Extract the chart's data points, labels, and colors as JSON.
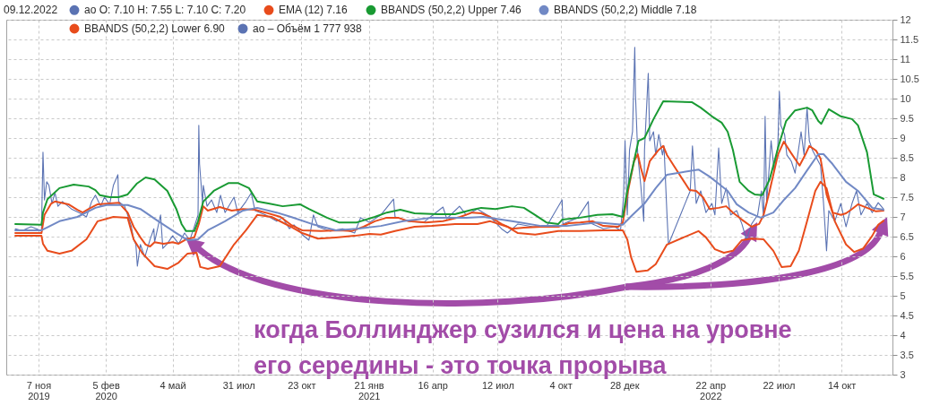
{
  "chart_data": {
    "type": "line",
    "legend": "top left",
    "grid": true,
    "xlim": [
      "2019-09-25",
      "2022-12-21"
    ],
    "xticks": [
      {
        "value": "2019-11-07",
        "label": "7 ноя\n2019"
      },
      {
        "value": "2020-02-05",
        "label": "5 фев\n2020"
      },
      {
        "value": "2020-05-04",
        "label": "4 май"
      },
      {
        "value": "2020-07-31",
        "label": "31 июл"
      },
      {
        "value": "2020-10-23",
        "label": "23 окт"
      },
      {
        "value": "2021-01-21",
        "label": "21 янв\n2021"
      },
      {
        "value": "2021-04-16",
        "label": "16 апр"
      },
      {
        "value": "2021-07-12",
        "label": "12 июл"
      },
      {
        "value": "2021-10-04",
        "label": "4 окт"
      },
      {
        "value": "2021-12-28",
        "label": "28 дек"
      },
      {
        "value": "2022-04-22",
        "label": "22 апр\n2022"
      },
      {
        "value": "2022-07-22",
        "label": "22 июл"
      },
      {
        "value": "2022-10-14",
        "label": "14 окт"
      }
    ],
    "ylim": [
      3,
      12
    ],
    "yticks": [
      3,
      3.5,
      4,
      4.5,
      5,
      5.5,
      6,
      6.5,
      7,
      7.5,
      8,
      8.5,
      9,
      9.5,
      10,
      10.5,
      11,
      11.5,
      12
    ],
    "annotations": [
      "09.12.2022",
      "ао – Объём 1 777 938",
      "когда Боллинджер сузился и цена на уровне\nего середины - это точка прорыва"
    ],
    "series": [
      {
        "name": "ао O: 7.10 H: 7.55 L: 7.10 C: 7.20",
        "color": "#5b73b3",
        "x": [
          "2019-10-07",
          "2019-10-16",
          "2019-10-28",
          "2019-11-11",
          "2019-11-13",
          "2019-11-15",
          "2019-11-18",
          "2019-11-21",
          "2019-11-25",
          "2019-11-29",
          "2019-12-03",
          "2019-12-09",
          "2019-12-21",
          "2020-01-02",
          "2020-01-10",
          "2020-01-17",
          "2020-01-22",
          "2020-01-29",
          "2020-02-03",
          "2020-02-10",
          "2020-02-15",
          "2020-02-21",
          "2020-02-22",
          "2020-03-01",
          "2020-03-05",
          "2020-03-10",
          "2020-03-13",
          "2020-03-16",
          "2020-03-18",
          "2020-03-22",
          "2020-03-28",
          "2020-04-04",
          "2020-04-09",
          "2020-04-10",
          "2020-04-18",
          "2020-04-21",
          "2020-04-27",
          "2020-05-04",
          "2020-05-12",
          "2020-05-20",
          "2020-05-27",
          "2020-06-02",
          "2020-06-07",
          "2020-06-08",
          "2020-06-09",
          "2020-06-13",
          "2020-06-14",
          "2020-06-19",
          "2020-06-25",
          "2020-07-02",
          "2020-07-07",
          "2020-07-13",
          "2020-07-25",
          "2020-07-30",
          "2020-08-10",
          "2020-08-17",
          "2020-08-22",
          "2020-09-05",
          "2020-09-20",
          "2020-09-28",
          "2020-10-07",
          "2020-10-13",
          "2020-10-21",
          "2020-10-24",
          "2020-11-02",
          "2020-11-08",
          "2020-11-14",
          "2020-11-30",
          "2020-12-17",
          "2021-01-02",
          "2021-01-10",
          "2021-01-22",
          "2021-02-06",
          "2021-02-23",
          "2021-02-25",
          "2021-03-15",
          "2021-04-04",
          "2021-04-30",
          "2021-05-05",
          "2021-05-22",
          "2021-05-31",
          "2021-06-15",
          "2021-07-02",
          "2021-07-17",
          "2021-07-25",
          "2021-08-08",
          "2021-08-28",
          "2021-09-15",
          "2021-10-06",
          "2021-10-07",
          "2021-10-27",
          "2021-11-10",
          "2021-11-11",
          "2021-11-30",
          "2021-12-15",
          "2021-12-23",
          "2021-12-27",
          "2021-12-29",
          "2022-01-01",
          "2022-01-04",
          "2022-01-08",
          "2022-01-11",
          "2022-01-12",
          "2022-01-15",
          "2022-01-19",
          "2022-01-23",
          "2022-01-24",
          "2022-01-29",
          "2022-01-31",
          "2022-02-05",
          "2022-02-08",
          "2022-02-12",
          "2022-02-17",
          "2022-02-19",
          "2022-02-23",
          "2022-02-25",
          "2022-03-26",
          "2022-03-29",
          "2022-04-03",
          "2022-04-09",
          "2022-04-16",
          "2022-04-24",
          "2022-04-28",
          "2022-05-03",
          "2022-05-07",
          "2022-05-13",
          "2022-05-19",
          "2022-05-27",
          "2022-06-03",
          "2022-06-09",
          "2022-06-16",
          "2022-06-24",
          "2022-06-29",
          "2022-07-02",
          "2022-07-04",
          "2022-07-06",
          "2022-07-12",
          "2022-07-16",
          "2022-07-21",
          "2022-07-23",
          "2022-07-25",
          "2022-07-30",
          "2022-08-02",
          "2022-08-08",
          "2022-08-13",
          "2022-08-21",
          "2022-08-25",
          "2022-08-29",
          "2022-09-01",
          "2022-09-05",
          "2022-09-13",
          "2022-09-16",
          "2022-09-20",
          "2022-09-24",
          "2022-09-27",
          "2022-10-05",
          "2022-10-13",
          "2022-10-20",
          "2022-10-28",
          "2022-11-03",
          "2022-11-09",
          "2022-11-17",
          "2022-11-24",
          "2022-12-02",
          "2022-12-09"
        ],
        "values": [
          6.7,
          6.65,
          6.75,
          6.65,
          8.64,
          7.43,
          7.89,
          7.8,
          7.34,
          7.61,
          7.27,
          7.39,
          7.2,
          7.09,
          7.0,
          7.39,
          7.55,
          7.27,
          7.5,
          7.32,
          7.8,
          8.07,
          7.39,
          7.27,
          7.05,
          6.75,
          6.43,
          6.3,
          5.75,
          6.3,
          5.98,
          6.43,
          6.7,
          6.36,
          7.05,
          6.2,
          6.32,
          6.52,
          6.32,
          6.59,
          6.41,
          6.75,
          7.05,
          9.32,
          8.34,
          7.34,
          7.8,
          7.27,
          7.43,
          7.11,
          7.55,
          7.11,
          7.5,
          7.11,
          7.39,
          7.61,
          7.16,
          7.05,
          6.89,
          6.98,
          6.7,
          6.8,
          6.64,
          6.55,
          6.41,
          7.05,
          6.75,
          6.64,
          6.7,
          6.59,
          6.98,
          6.86,
          7.05,
          7.45,
          7.0,
          6.89,
          6.86,
          7.25,
          6.95,
          7.27,
          7.05,
          7.2,
          7.0,
          6.7,
          6.59,
          6.82,
          6.75,
          6.75,
          7.43,
          6.82,
          6.98,
          7.39,
          6.86,
          6.7,
          6.75,
          6.66,
          7.5,
          8.93,
          7.05,
          8.7,
          9.16,
          11.3,
          10.07,
          8.57,
          7.8,
          6.89,
          8.7,
          10.64,
          8.93,
          9.16,
          8.57,
          9.09,
          8.57,
          8.8,
          7.05,
          6.3,
          7.66,
          8.8,
          7.34,
          7.66,
          7.11,
          7.34,
          7.05,
          8.75,
          7.34,
          7.73,
          7.05,
          7.16,
          6.82,
          6.43,
          6.82,
          7.05,
          7.66,
          6.98,
          9.55,
          7.34,
          8.93,
          8.18,
          8.8,
          10.18,
          9.32,
          9.09,
          8.57,
          8.41,
          8.11,
          9.16,
          8.57,
          9.77,
          8.93,
          8.7,
          8.41,
          8.3,
          7.34,
          6.14,
          7.16,
          6.89,
          7.34,
          6.75,
          7.34,
          7.66,
          7.05,
          7.34,
          7.11,
          7.36,
          7.2
        ]
      },
      {
        "name": "EMA (12) 7.16",
        "color": "#e84c1c",
        "x": [
          "2019-10-07",
          "2019-11-11",
          "2019-11-15",
          "2019-11-24",
          "2019-11-29",
          "2019-12-17",
          "2019-12-29",
          "2020-01-05",
          "2020-01-13",
          "2020-01-25",
          "2020-02-10",
          "2020-02-22",
          "2020-03-05",
          "2020-03-13",
          "2020-03-22",
          "2020-03-29",
          "2020-04-04",
          "2020-04-10",
          "2020-04-22",
          "2020-05-04",
          "2020-05-12",
          "2020-05-22",
          "2020-06-02",
          "2020-06-08",
          "2020-06-14",
          "2020-06-20",
          "2020-07-06",
          "2020-07-22",
          "2020-08-06",
          "2020-08-22",
          "2020-09-05",
          "2020-09-25",
          "2020-10-09",
          "2020-10-24",
          "2020-11-18",
          "2020-12-12",
          "2020-12-29",
          "2021-01-14",
          "2021-01-29",
          "2021-02-14",
          "2021-03-01",
          "2021-03-15",
          "2021-04-07",
          "2021-04-30",
          "2021-05-23",
          "2021-06-08",
          "2021-06-20",
          "2021-07-02",
          "2021-07-17",
          "2021-07-31",
          "2021-08-16",
          "2021-09-08",
          "2021-10-01",
          "2021-10-15",
          "2021-10-30",
          "2021-11-16",
          "2021-11-30",
          "2021-12-20",
          "2021-12-26",
          "2022-01-02",
          "2022-01-10",
          "2022-01-15",
          "2022-01-19",
          "2022-01-24",
          "2022-01-31",
          "2022-02-11",
          "2022-02-18",
          "2022-02-23",
          "2022-03-25",
          "2022-04-03",
          "2022-04-12",
          "2022-04-21",
          "2022-05-03",
          "2022-05-13",
          "2022-05-22",
          "2022-06-03",
          "2022-06-16",
          "2022-06-26",
          "2022-07-02",
          "2022-07-10",
          "2022-07-21",
          "2022-07-29",
          "2022-08-07",
          "2022-08-19",
          "2022-08-27",
          "2022-09-01",
          "2022-09-10",
          "2022-09-16",
          "2022-09-24",
          "2022-10-02",
          "2022-10-13",
          "2022-10-20",
          "2022-10-28",
          "2022-11-05",
          "2022-11-17",
          "2022-11-29",
          "2022-12-09"
        ],
        "values": [
          6.59,
          6.59,
          7.05,
          7.34,
          7.39,
          7.32,
          7.18,
          7.11,
          7.2,
          7.32,
          7.34,
          7.36,
          7.11,
          6.75,
          6.48,
          6.3,
          6.25,
          6.36,
          6.32,
          6.36,
          6.32,
          6.43,
          6.48,
          6.82,
          7.27,
          7.16,
          7.25,
          7.16,
          7.2,
          7.18,
          7.11,
          7.0,
          6.8,
          6.66,
          6.64,
          6.66,
          6.64,
          6.75,
          6.89,
          6.98,
          6.98,
          6.89,
          6.86,
          6.89,
          7.0,
          7.11,
          7.09,
          7.0,
          6.82,
          6.7,
          6.73,
          6.75,
          6.75,
          6.84,
          6.86,
          6.89,
          6.77,
          6.75,
          6.86,
          7.66,
          8.41,
          8.59,
          8.25,
          7.91,
          8.41,
          8.68,
          8.8,
          8.57,
          7.68,
          7.66,
          7.5,
          7.2,
          7.23,
          7.27,
          7.11,
          6.93,
          6.75,
          6.82,
          7.05,
          7.66,
          8.57,
          8.91,
          8.64,
          8.3,
          8.59,
          8.8,
          8.68,
          8.48,
          7.57,
          7.11,
          7.05,
          7.09,
          7.2,
          7.32,
          7.23,
          7.14,
          7.16
        ]
      },
      {
        "name": "BBANDS (50,2,2) Upper 7.46",
        "color": "#199a33",
        "x": [
          "2019-10-07",
          "2019-11-11",
          "2019-11-13",
          "2019-11-19",
          "2019-12-05",
          "2019-12-24",
          "2020-01-13",
          "2020-01-22",
          "2020-01-28",
          "2020-02-10",
          "2020-02-22",
          "2020-03-05",
          "2020-03-17",
          "2020-03-29",
          "2020-04-10",
          "2020-04-27",
          "2020-05-09",
          "2020-05-16",
          "2020-05-22",
          "2020-06-02",
          "2020-06-07",
          "2020-06-14",
          "2020-06-28",
          "2020-07-18",
          "2020-07-30",
          "2020-08-14",
          "2020-08-25",
          "2020-09-09",
          "2020-09-28",
          "2020-10-21",
          "2020-11-02",
          "2020-11-26",
          "2020-12-12",
          "2021-01-05",
          "2021-01-29",
          "2021-02-14",
          "2021-03-04",
          "2021-03-23",
          "2021-04-23",
          "2021-05-16",
          "2021-06-08",
          "2021-06-20",
          "2021-07-09",
          "2021-07-31",
          "2021-08-16",
          "2021-08-31",
          "2021-09-15",
          "2021-10-01",
          "2021-10-06",
          "2021-10-30",
          "2021-11-22",
          "2021-12-12",
          "2021-12-26",
          "2022-01-01",
          "2022-01-08",
          "2022-01-16",
          "2022-01-24",
          "2022-02-05",
          "2022-02-18",
          "2022-03-28",
          "2022-04-09",
          "2022-04-24",
          "2022-05-07",
          "2022-05-15",
          "2022-05-22",
          "2022-05-31",
          "2022-06-12",
          "2022-06-20",
          "2022-06-30",
          "2022-07-10",
          "2022-07-22",
          "2022-08-01",
          "2022-08-13",
          "2022-08-29",
          "2022-09-05",
          "2022-09-13",
          "2022-09-17",
          "2022-09-27",
          "2022-10-13",
          "2022-10-28",
          "2022-11-05",
          "2022-11-17",
          "2022-11-26",
          "2022-12-09"
        ],
        "values": [
          6.82,
          6.8,
          7.11,
          7.45,
          7.73,
          7.82,
          7.77,
          7.68,
          7.55,
          7.5,
          7.5,
          7.57,
          7.84,
          8.0,
          7.95,
          7.66,
          7.2,
          6.82,
          6.64,
          6.64,
          6.89,
          7.39,
          7.66,
          7.86,
          7.86,
          7.73,
          7.39,
          7.34,
          7.27,
          7.32,
          7.2,
          6.98,
          6.86,
          6.86,
          7.0,
          7.11,
          7.18,
          7.09,
          7.07,
          7.07,
          7.18,
          7.23,
          7.2,
          7.27,
          7.23,
          7.05,
          6.86,
          6.82,
          6.93,
          6.98,
          7.05,
          7.07,
          7.0,
          7.66,
          8.25,
          8.93,
          9.0,
          9.48,
          9.93,
          9.91,
          9.77,
          9.55,
          9.39,
          9.16,
          8.7,
          7.89,
          7.66,
          7.57,
          7.55,
          7.95,
          8.8,
          9.43,
          9.7,
          9.77,
          9.7,
          9.43,
          9.36,
          9.73,
          9.55,
          9.48,
          9.32,
          8.64,
          7.57,
          7.46
        ]
      },
      {
        "name": "BBANDS (50,2,2) Middle 7.18",
        "color": "#7189c5",
        "x": [
          "2019-10-07",
          "2019-11-11",
          "2019-12-05",
          "2019-12-29",
          "2020-01-22",
          "2020-02-06",
          "2020-03-05",
          "2020-03-22",
          "2020-04-15",
          "2020-05-09",
          "2020-05-24",
          "2020-06-07",
          "2020-06-20",
          "2020-07-13",
          "2020-08-06",
          "2020-08-25",
          "2020-09-20",
          "2020-10-09",
          "2020-11-06",
          "2020-12-08",
          "2021-01-05",
          "2021-02-06",
          "2021-03-08",
          "2021-04-15",
          "2021-05-31",
          "2021-06-23",
          "2021-07-31",
          "2021-09-08",
          "2021-10-12",
          "2021-11-22",
          "2021-12-26",
          "2022-01-08",
          "2022-01-24",
          "2022-02-08",
          "2022-02-23",
          "2022-04-06",
          "2022-04-21",
          "2022-05-03",
          "2022-05-15",
          "2022-05-27",
          "2022-06-12",
          "2022-06-28",
          "2022-07-15",
          "2022-07-30",
          "2022-08-13",
          "2022-08-29",
          "2022-09-13",
          "2022-09-20",
          "2022-10-02",
          "2022-10-20",
          "2022-11-05",
          "2022-11-24",
          "2022-12-09"
        ],
        "values": [
          6.66,
          6.66,
          6.89,
          7.0,
          7.23,
          7.3,
          7.3,
          7.2,
          6.89,
          6.59,
          6.41,
          6.43,
          6.66,
          6.89,
          7.16,
          7.23,
          7.11,
          7.0,
          6.82,
          6.66,
          6.7,
          6.77,
          6.89,
          6.98,
          6.98,
          7.0,
          6.89,
          6.77,
          6.77,
          6.86,
          6.8,
          7.05,
          7.34,
          7.73,
          8.07,
          8.2,
          8.02,
          7.84,
          7.66,
          7.32,
          7.11,
          6.98,
          7.11,
          7.45,
          7.73,
          8.18,
          8.59,
          8.59,
          8.34,
          7.89,
          7.66,
          7.23,
          7.18
        ]
      },
      {
        "name": "BBANDS (50,2,2) Lower 6.90",
        "color": "#e84c1c",
        "x": [
          "2019-10-07",
          "2019-11-11",
          "2019-11-13",
          "2019-11-19",
          "2019-12-05",
          "2019-12-21",
          "2020-01-10",
          "2020-01-25",
          "2020-02-15",
          "2020-03-05",
          "2020-03-13",
          "2020-03-25",
          "2020-04-10",
          "2020-04-27",
          "2020-05-12",
          "2020-05-24",
          "2020-06-05",
          "2020-06-10",
          "2020-06-20",
          "2020-07-06",
          "2020-07-25",
          "2020-08-10",
          "2020-08-25",
          "2020-09-13",
          "2020-10-09",
          "2020-10-24",
          "2020-11-14",
          "2020-12-08",
          "2021-01-02",
          "2021-01-22",
          "2021-02-06",
          "2021-02-25",
          "2021-03-23",
          "2021-04-15",
          "2021-05-16",
          "2021-06-15",
          "2021-07-02",
          "2021-07-25",
          "2021-08-08",
          "2021-08-31",
          "2021-10-01",
          "2021-10-30",
          "2021-11-30",
          "2021-12-26",
          "2022-01-01",
          "2022-01-06",
          "2022-01-13",
          "2022-01-28",
          "2022-02-08",
          "2022-02-23",
          "2022-04-06",
          "2022-04-16",
          "2022-04-28",
          "2022-05-10",
          "2022-05-22",
          "2022-06-03",
          "2022-06-16",
          "2022-07-02",
          "2022-07-15",
          "2022-07-26",
          "2022-08-07",
          "2022-08-18",
          "2022-08-29",
          "2022-09-09",
          "2022-09-16",
          "2022-09-24",
          "2022-10-05",
          "2022-10-20",
          "2022-10-31",
          "2022-11-12",
          "2022-11-24",
          "2022-12-02",
          "2022-12-09"
        ],
        "values": [
          6.52,
          6.52,
          6.32,
          6.14,
          6.07,
          6.14,
          6.43,
          6.89,
          7.0,
          6.98,
          6.43,
          6.07,
          5.75,
          5.68,
          5.84,
          6.07,
          6.09,
          5.73,
          5.68,
          5.75,
          6.3,
          6.66,
          7.05,
          7.0,
          6.75,
          6.59,
          6.45,
          6.48,
          6.52,
          6.57,
          6.55,
          6.64,
          6.75,
          6.77,
          6.82,
          6.82,
          6.89,
          6.75,
          6.59,
          6.55,
          6.64,
          6.64,
          6.66,
          6.66,
          6.43,
          5.98,
          5.61,
          5.64,
          5.8,
          6.3,
          6.64,
          6.48,
          6.18,
          6.09,
          6.14,
          6.41,
          6.45,
          6.43,
          6.14,
          5.73,
          5.75,
          6.14,
          6.89,
          7.66,
          7.89,
          7.73,
          6.89,
          6.3,
          6.11,
          6.2,
          6.52,
          6.8,
          6.9
        ]
      }
    ]
  }
}
